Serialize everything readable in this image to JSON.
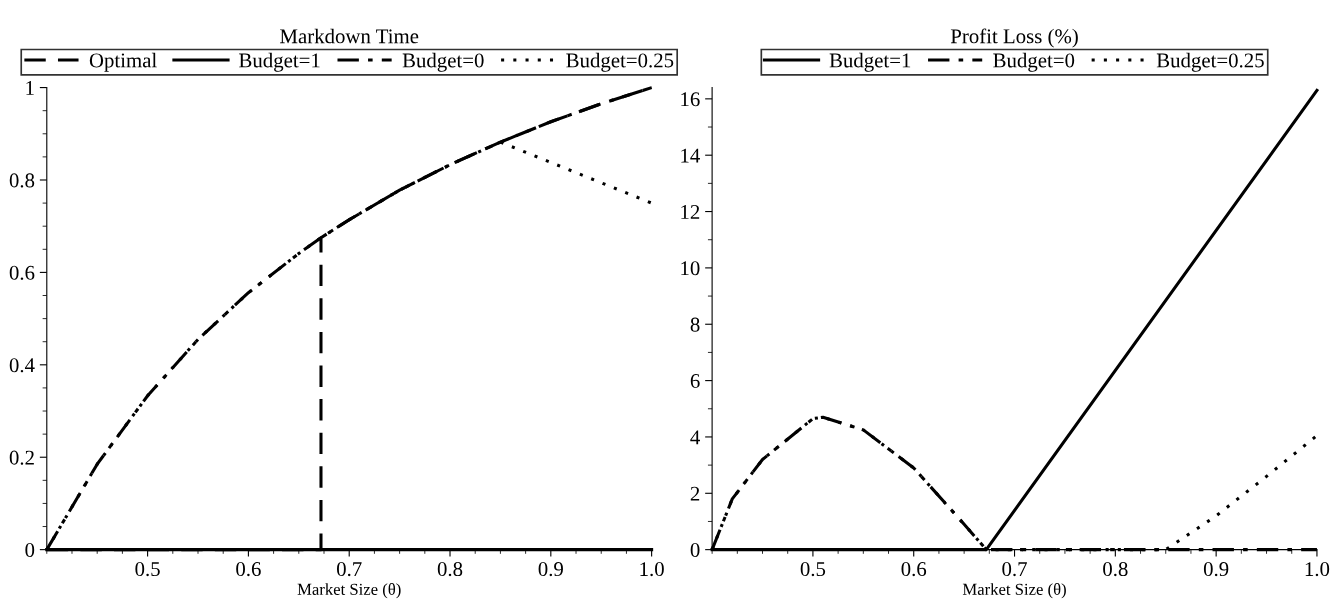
{
  "chart_data": [
    {
      "type": "line",
      "title": "Markdown Time",
      "xlabel": "Market Size (θ)",
      "legend": "top",
      "grid": false,
      "marker": "none",
      "xlim": [
        0.4,
        1.0
      ],
      "ylim": [
        0,
        1
      ],
      "xticks": [
        0.5,
        0.6,
        0.7,
        0.8,
        0.9,
        {
          "value": 1.0,
          "label": "1.0"
        }
      ],
      "yticks": [
        0,
        0.2,
        0.4,
        0.6,
        0.8,
        1
      ],
      "series": [
        {
          "name": "Optimal",
          "color": "#000000",
          "line_style": "dashed",
          "x": [
            0.4,
            0.672,
            0.672,
            0.7,
            0.75,
            0.8,
            0.85,
            0.9,
            0.95,
            1.0
          ],
          "values": [
            0,
            0,
            0.675,
            0.714,
            0.778,
            0.833,
            0.882,
            0.926,
            0.965,
            1.0
          ]
        },
        {
          "name": "Budget=1",
          "color": "#000000",
          "line_style": "solid",
          "x": [
            0.4,
            1.0
          ],
          "values": [
            0,
            0
          ]
        },
        {
          "name": "Budget=0",
          "color": "#000000",
          "line_style": "dashdot",
          "x": [
            0.4,
            0.45,
            0.5,
            0.55,
            0.6,
            0.65,
            0.672,
            0.7,
            0.75,
            0.8,
            0.85,
            0.9,
            0.95,
            1.0
          ],
          "values": [
            0,
            0.185,
            0.333,
            0.455,
            0.556,
            0.641,
            0.675,
            0.714,
            0.778,
            0.833,
            0.882,
            0.926,
            0.965,
            1.0
          ]
        },
        {
          "name": "Budget=0.25",
          "color": "#000000",
          "line_style": "dotted",
          "x": [
            0.4,
            0.45,
            0.5,
            0.55,
            0.6,
            0.65,
            0.672,
            0.7,
            0.75,
            0.8,
            0.85,
            1.0
          ],
          "values": [
            0,
            0.185,
            0.333,
            0.455,
            0.556,
            0.641,
            0.675,
            0.714,
            0.778,
            0.833,
            0.882,
            0.75
          ]
        }
      ]
    },
    {
      "type": "line",
      "title": "Profit Loss (%)",
      "xlabel": "Market Size (θ)",
      "legend": "top",
      "grid": false,
      "marker": "none",
      "xlim": [
        0.4,
        1.0
      ],
      "ylim": [
        0,
        16.4
      ],
      "xticks": [
        0.5,
        0.6,
        0.7,
        0.8,
        0.9,
        {
          "value": 1.0,
          "label": "1.0"
        }
      ],
      "yticks": [
        0,
        2,
        4,
        6,
        8,
        10,
        12,
        14,
        16
      ],
      "series": [
        {
          "name": "Budget=1",
          "color": "#000000",
          "line_style": "solid",
          "x": [
            0.4,
            0.672,
            1.0
          ],
          "values": [
            0,
            0,
            16.3
          ]
        },
        {
          "name": "Budget=0",
          "color": "#000000",
          "line_style": "dashdot",
          "x": [
            0.4,
            0.42,
            0.45,
            0.5,
            0.51,
            0.55,
            0.6,
            0.65,
            0.672,
            1.0
          ],
          "values": [
            0,
            1.8,
            3.2,
            4.65,
            4.7,
            4.25,
            2.9,
            0.9,
            0,
            0
          ]
        },
        {
          "name": "Budget=0.25",
          "color": "#000000",
          "line_style": "dotted",
          "x": [
            0.4,
            0.42,
            0.45,
            0.5,
            0.51,
            0.55,
            0.6,
            0.65,
            0.672,
            0.85,
            0.9,
            0.95,
            1.0
          ],
          "values": [
            0,
            1.8,
            3.2,
            4.65,
            4.7,
            4.25,
            2.9,
            0.9,
            0,
            0,
            1.2,
            2.6,
            4.05
          ]
        }
      ]
    }
  ]
}
